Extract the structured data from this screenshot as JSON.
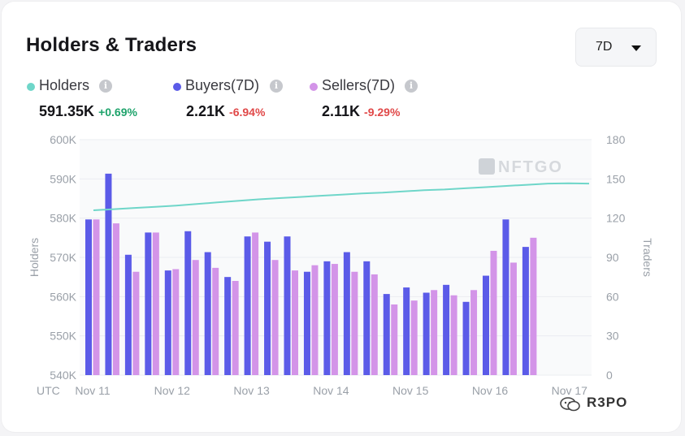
{
  "title": "Holders & Traders",
  "range_selector": {
    "value": "7D"
  },
  "legend": [
    {
      "label": "Holders",
      "color": "#6fd6c9",
      "value": "591.35K",
      "change": "+0.69%",
      "change_color": "#1ea36b"
    },
    {
      "label": "Buyers(7D)",
      "color": "#5b5be8",
      "value": "2.21K",
      "change": "-6.94%",
      "change_color": "#e04848"
    },
    {
      "label": "Sellers(7D)",
      "color": "#d394e8",
      "value": "2.11K",
      "change": "-9.29%",
      "change_color": "#e04848"
    }
  ],
  "colors": {
    "holders": "#6fd6c9",
    "buyers": "#5b5be8",
    "sellers": "#d394e8",
    "grid": "#ebedf0"
  },
  "chart_data": {
    "type": "bar",
    "left_axis_label": "Holders",
    "right_axis_label": "Traders",
    "timezone_label": "UTC",
    "left_ticks": [
      "600K",
      "590K",
      "580K",
      "570K",
      "560K",
      "550K",
      "540K"
    ],
    "right_ticks": [
      "180",
      "150",
      "120",
      "90",
      "60",
      "30",
      "0"
    ],
    "x_tick_labels": [
      "Nov 11",
      "Nov 12",
      "Nov 13",
      "Nov 14",
      "Nov 15",
      "Nov 16",
      "Nov 17"
    ],
    "ylim_left": [
      540000,
      600000
    ],
    "ylim_right": [
      0,
      180
    ],
    "series": [
      {
        "name": "Buyers(7D)",
        "axis": "right",
        "values": [
          119,
          154,
          92,
          109,
          80,
          110,
          94,
          75,
          106,
          102,
          106,
          79,
          87,
          94,
          87,
          62,
          67,
          63,
          69,
          56,
          76,
          119,
          98
        ]
      },
      {
        "name": "Sellers(7D)",
        "axis": "right",
        "values": [
          119,
          116,
          79,
          109,
          81,
          88,
          82,
          72,
          109,
          88,
          80,
          84,
          85,
          79,
          77,
          54,
          57,
          65,
          61,
          65,
          95,
          86,
          105
        ]
      },
      {
        "name": "Holders",
        "axis": "left",
        "type": "line",
        "x": [
          0,
          1,
          2,
          3,
          4,
          5,
          6,
          7,
          8,
          9,
          10,
          11,
          12,
          13,
          14,
          15,
          16,
          17,
          18,
          19,
          20,
          21,
          22,
          23,
          24
        ],
        "values": [
          582000,
          582300,
          582600,
          582900,
          583200,
          583600,
          584000,
          584400,
          584800,
          585100,
          585400,
          585700,
          586000,
          586300,
          586500,
          586800,
          587100,
          587300,
          587600,
          587900,
          588200,
          588500,
          588800,
          588900,
          588800
        ]
      }
    ],
    "grid": true,
    "watermark": "NFTGO"
  },
  "footer_watermark": "R3PO"
}
